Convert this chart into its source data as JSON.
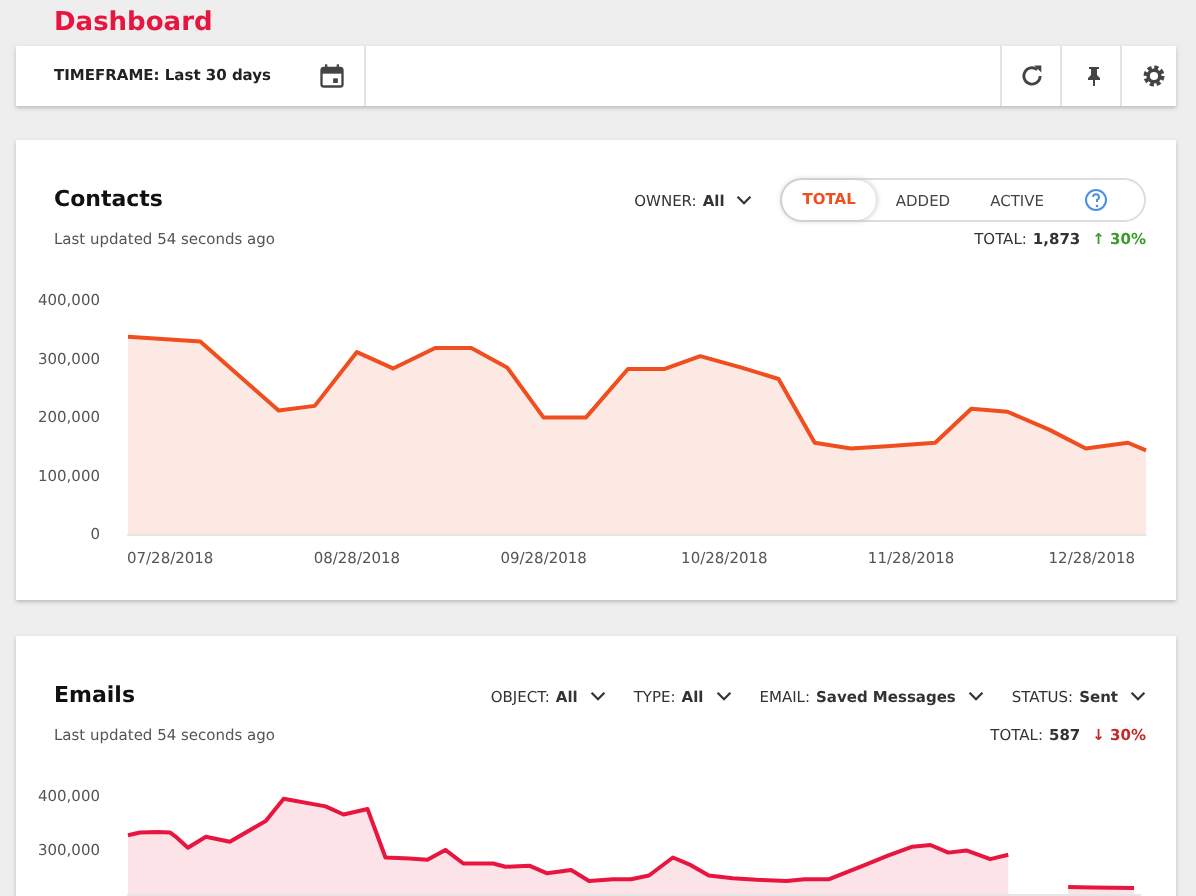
{
  "chart_data": [
    {
      "type": "area",
      "title": "Contacts",
      "subtitle": "Last updated 54 seconds ago",
      "annotations": [
        "Dashboard",
        "TIMEFRAME: Last 30 days",
        "OWNER: All",
        "TOTAL",
        "ADDED",
        "ACTIVE",
        "TOTAL: 1,873",
        "↑ 30%"
      ],
      "x": [
        "2018-07-21",
        "2018-08-02",
        "2018-08-15",
        "2018-08-21",
        "2018-08-28",
        "2018-09-03",
        "2018-09-10",
        "2018-09-16",
        "2018-09-22",
        "2018-09-28",
        "2018-10-05",
        "2018-10-12",
        "2018-10-18",
        "2018-10-24",
        "2018-10-31",
        "2018-11-06",
        "2018-11-12",
        "2018-11-18",
        "2018-11-24",
        "2018-12-02",
        "2018-12-08",
        "2018-12-14",
        "2018-12-21",
        "2018-12-27",
        "2019-01-03",
        "2019-01-06"
      ],
      "series": [
        {
          "color": "#f04e1e",
          "values": [
            337000,
            329000,
            211000,
            219000,
            311000,
            283000,
            318000,
            318000,
            284000,
            199000,
            199000,
            282000,
            282000,
            304000,
            284000,
            265000,
            156000,
            146000,
            150000,
            156000,
            214000,
            209000,
            178000,
            146000,
            156000,
            143000
          ]
        }
      ],
      "xlim": [
        "2018-07-21",
        "2019-01-06"
      ],
      "xticks": [
        {
          "value": "2018-07-28",
          "label": "07/28/2018"
        },
        {
          "value": "2018-08-28",
          "label": "08/28/2018"
        },
        {
          "value": "2018-09-28",
          "label": "09/28/2018"
        },
        {
          "value": "2018-10-28",
          "label": "10/28/2018"
        },
        {
          "value": "2018-11-28",
          "label": "11/28/2018"
        },
        {
          "value": "2018-12-28",
          "label": "12/28/2018"
        }
      ],
      "ylim": [
        0,
        400000
      ],
      "yticks": [
        {
          "value": 0,
          "label": "0"
        },
        {
          "value": 100000,
          "label": "100,000"
        },
        {
          "value": 200000,
          "label": "200,000"
        },
        {
          "value": 300000,
          "label": "300,000"
        },
        {
          "value": 400000,
          "label": "400,000"
        }
      ]
    },
    {
      "type": "area",
      "title": "Emails",
      "subtitle": "Last updated 54 seconds ago",
      "annotations": [
        "OBJECT: All",
        "TYPE: All",
        "EMAIL: Saved Messages",
        "STATUS: Sent",
        "TOTAL: 587",
        "↓ 30%"
      ],
      "x": [
        "2018-07-21",
        "2018-07-23",
        "2018-07-26",
        "2018-07-28",
        "2018-07-29",
        "2018-07-31",
        "2018-08-03",
        "2018-08-07",
        "2018-08-13",
        "2018-08-16",
        "2018-08-23",
        "2018-08-26",
        "2018-08-30",
        "2018-09-02",
        "2018-09-06",
        "2018-09-09",
        "2018-09-12",
        "2018-09-15",
        "2018-09-20",
        "2018-09-22",
        "2018-09-26",
        "2018-09-29",
        "2018-10-03",
        "2018-10-06",
        "2018-10-10",
        "2018-10-13",
        "2018-10-16",
        "2018-10-20",
        "2018-10-23",
        "2018-10-26",
        "2018-10-30",
        "2018-11-03",
        "2018-11-08",
        "2018-11-11",
        "2018-11-15",
        "2018-11-21",
        "2018-11-25",
        "2018-11-29",
        "2018-12-02",
        "2018-12-05",
        "2018-12-08",
        "2018-12-12",
        "2018-12-15",
        "2018-12-21",
        "2018-12-25",
        "2018-12-29",
        "2019-01-05"
      ],
      "series": [
        {
          "color": "#e8163f",
          "values": [
            328000,
            333000,
            334000,
            333000,
            325000,
            305000,
            325000,
            316000,
            354000,
            395000,
            381000,
            366000,
            376000,
            287000,
            285000,
            283000,
            301000,
            276000,
            276000,
            270000,
            272000,
            258000,
            264000,
            244000,
            247000,
            247000,
            254000,
            287000,
            273000,
            254000,
            249000,
            246000,
            244000,
            247000,
            247000,
            273000,
            291000,
            307000,
            310000,
            296000,
            300000,
            284000,
            292000,
            null,
            233000,
            232000,
            231000
          ]
        }
      ],
      "xlim": [
        "2018-07-21",
        "2019-01-06"
      ],
      "ylim": [
        220000,
        400000
      ],
      "yticks": [
        {
          "value": 300000,
          "label": "300,000"
        },
        {
          "value": 400000,
          "label": "400,000"
        }
      ],
      "tick_labels": "y"
    }
  ]
}
